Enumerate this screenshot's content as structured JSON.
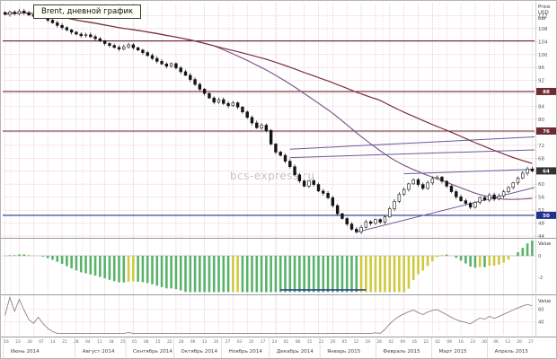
{
  "title_box": "Brent, дневной график",
  "watermark": "bcs-express.ru",
  "axis": {
    "price_label_lines": [
      "Price",
      "USD",
      "bbl"
    ],
    "price_ticks": [
      112,
      108,
      104,
      100,
      96,
      92,
      88,
      84,
      80,
      76,
      72,
      68,
      64,
      60,
      56,
      52,
      48,
      44
    ],
    "price_badges": [
      {
        "value": "88",
        "price": 88.6,
        "color": "#6d2b33"
      },
      {
        "value": "76",
        "price": 76.4,
        "color": "#6d2b33"
      },
      {
        "value": "64",
        "price": 64.1,
        "color": "#333333"
      },
      {
        "value": "50",
        "price": 50.4,
        "color": "#25318f"
      }
    ],
    "macd_label": "Value",
    "macd_ticks": [
      0,
      -2
    ],
    "osc_label": "Value",
    "osc_ticks": [
      60,
      40
    ]
  },
  "x_axis": {
    "day_labels": [
      "16",
      "23",
      "30",
      "07",
      "14",
      "21",
      "28",
      "04",
      "11",
      "18",
      "25",
      "01",
      "08",
      "15",
      "22",
      "29",
      "06",
      "13",
      "20",
      "27",
      "03",
      "10",
      "17",
      "24",
      "01",
      "08",
      "15",
      "22",
      "29",
      "05",
      "12",
      "19",
      "26",
      "02",
      "09",
      "16",
      "23",
      "02",
      "09",
      "16",
      "23",
      "30",
      "06",
      "13",
      "20",
      "27"
    ],
    "month_labels": [
      {
        "label": "Июнь 2014",
        "f": 0.015
      },
      {
        "label": "Август 2014",
        "f": 0.15
      },
      {
        "label": "Сентябрь 2014",
        "f": 0.245
      },
      {
        "label": "Октябрь 2014",
        "f": 0.335
      },
      {
        "label": "Ноябрь 2014",
        "f": 0.425
      },
      {
        "label": "Декабрь 2014",
        "f": 0.515
      },
      {
        "label": "Январь 2015",
        "f": 0.61
      },
      {
        "label": "Февраль 2015",
        "f": 0.715
      },
      {
        "label": "Март 2015",
        "f": 0.82
      },
      {
        "label": "Апрель 2015",
        "f": 0.925
      }
    ]
  },
  "chart_data": {
    "type": "candlestick",
    "symbol": "Brent",
    "timeframe": "daily",
    "title": "Brent, дневной график",
    "x_range": [
      "2014-06",
      "2015-04"
    ],
    "price_range": [
      44,
      114
    ],
    "closes": [
      112.4,
      113.1,
      112.6,
      113.4,
      112.9,
      112.2,
      111.8,
      112.3,
      111.5,
      110.6,
      109.8,
      109.0,
      108.3,
      107.6,
      106.9,
      106.3,
      105.8,
      106.1,
      105.5,
      104.9,
      104.2,
      103.4,
      102.8,
      102.2,
      101.7,
      102.4,
      103.0,
      102.1,
      101.4,
      100.6,
      99.7,
      98.8,
      97.9,
      97.1,
      96.4,
      97.2,
      95.9,
      94.7,
      93.6,
      92.3,
      90.8,
      89.3,
      88.0,
      86.6,
      85.3,
      86.1,
      84.9,
      84.2,
      85.1,
      83.8,
      82.3,
      80.6,
      78.9,
      77.4,
      78.2,
      76.6,
      72.4,
      69.9,
      68.9,
      67.1,
      65.4,
      62.9,
      61.0,
      59.4,
      61.1,
      59.9,
      57.9,
      57.2,
      55.8,
      53.4,
      50.9,
      49.4,
      47.7,
      46.1,
      45.3,
      46.7,
      48.4,
      47.9,
      49.1,
      48.3,
      49.9,
      52.4,
      54.7,
      56.9,
      58.4,
      60.1,
      61.4,
      59.9,
      58.7,
      60.4,
      61.7,
      62.2,
      60.9,
      59.4,
      57.7,
      56.1,
      54.9,
      54.1,
      52.9,
      54.4,
      55.9,
      55.1,
      56.7,
      55.4,
      56.4,
      57.7,
      59.0,
      60.4,
      61.9,
      63.4,
      64.7,
      64.1
    ],
    "moving_averages": [
      {
        "period": 45,
        "color": "#7f5a8f"
      },
      {
        "period": 80,
        "color": "#7c2f3e"
      }
    ],
    "h_lines": [
      {
        "price": 104.2,
        "color": "#6d2b33"
      },
      {
        "price": 88.6,
        "color": "#6d2b33"
      },
      {
        "price": 76.4,
        "color": "#6d2b33"
      },
      {
        "price": 50.4,
        "color": "#25318f"
      }
    ],
    "trend_lines": [
      {
        "i1": 60,
        "p1": 70.8,
        "i2": 112,
        "p2": 74.6,
        "color": "#6a5a9e"
      },
      {
        "i1": 60,
        "p1": 68.2,
        "i2": 112,
        "p2": 70.6,
        "color": "#6a5a9e"
      },
      {
        "i1": 74,
        "p1": 45.2,
        "i2": 112,
        "p2": 59.0,
        "color": "#6a5a9e"
      },
      {
        "i1": 84,
        "p1": 63.2,
        "i2": 112,
        "p2": 64.6,
        "color": "#6a5a9e"
      }
    ],
    "indicators": {
      "macd_histogram": {
        "fast": 12,
        "slow": 26,
        "color_up": "#58b26a",
        "color_fade": "#cfc93f",
        "base_segment": {
          "i1": 58,
          "i2": 76,
          "color": "#25318f"
        }
      },
      "oscillator": {
        "type": "rsi",
        "period": 14,
        "color": "#8a7f98",
        "display_range": [
          20,
          80
        ]
      }
    },
    "grid": true,
    "colors": {
      "grid": "#f3dce2",
      "candle": "#141414",
      "separator": "#9a9aa5",
      "axis_text": "#555555"
    }
  }
}
